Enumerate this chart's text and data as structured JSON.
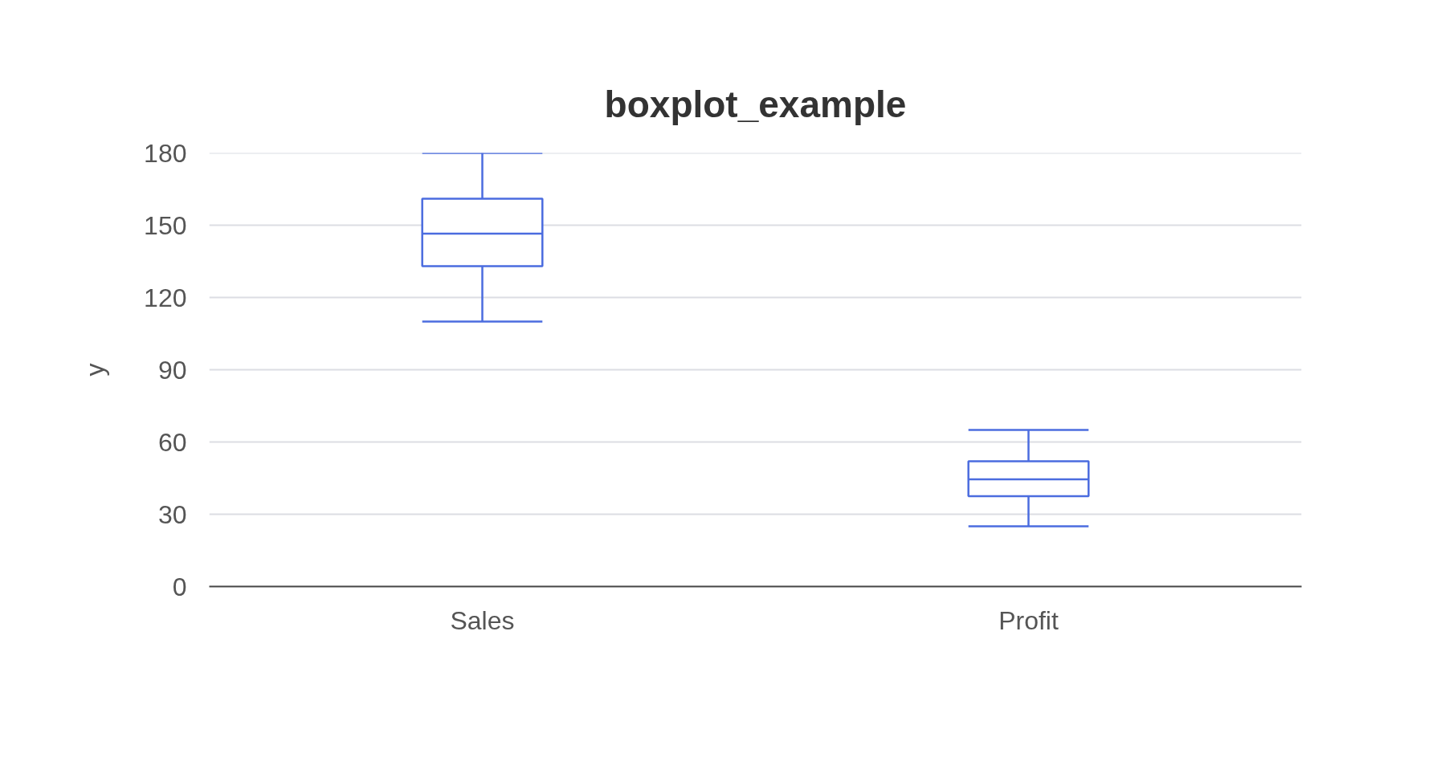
{
  "chart_data": {
    "type": "box",
    "title": "boxplot_example",
    "ylabel": "y",
    "categories": [
      "Sales",
      "Profit"
    ],
    "series": [
      {
        "color": "#4b6cdf",
        "boxes": [
          {
            "low": 110,
            "q1": 133,
            "median": 146.5,
            "q3": 161,
            "high": 180
          },
          {
            "low": 25,
            "q1": 37.5,
            "median": 44.5,
            "q3": 52,
            "high": 65
          }
        ]
      }
    ],
    "ylim": [
      0,
      180
    ],
    "yticks": [
      0,
      30,
      60,
      90,
      120,
      150,
      180
    ],
    "grid": "y"
  }
}
